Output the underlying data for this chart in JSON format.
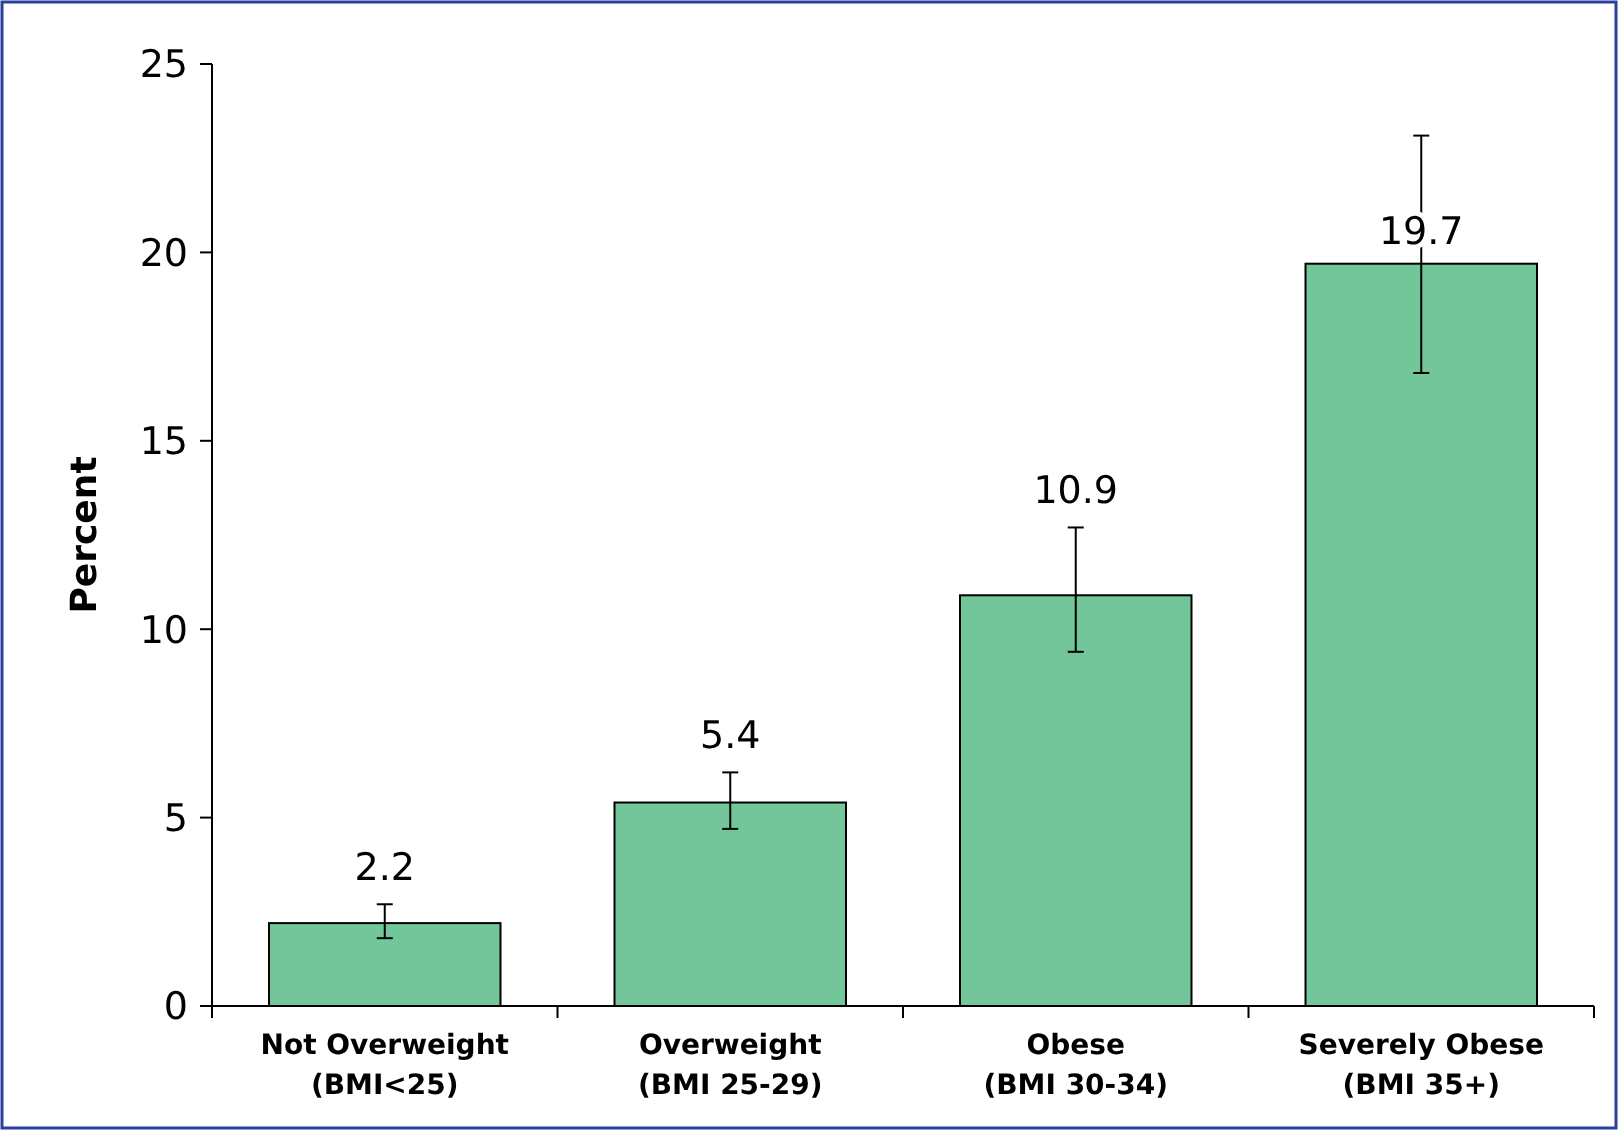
{
  "chart_data": {
    "type": "bar",
    "ylabel": "Percent",
    "categories": [
      "Not Overweight\n(BMI<25)",
      "Overweight\n(BMI 25-29)",
      "Obese\n(BMI 30-34)",
      "Severely Obese\n(BMI 35+)"
    ],
    "values": [
      2.2,
      5.4,
      10.9,
      19.7
    ],
    "errors": [
      [
        1.8,
        2.7
      ],
      [
        4.7,
        6.2
      ],
      [
        9.4,
        12.7
      ],
      [
        16.8,
        23.1
      ]
    ],
    "color": "#72c69a",
    "data_labels": true,
    "ylim": [
      0,
      25
    ],
    "yticks": [
      0,
      5,
      10,
      15,
      20,
      25
    ],
    "grid": false
  }
}
